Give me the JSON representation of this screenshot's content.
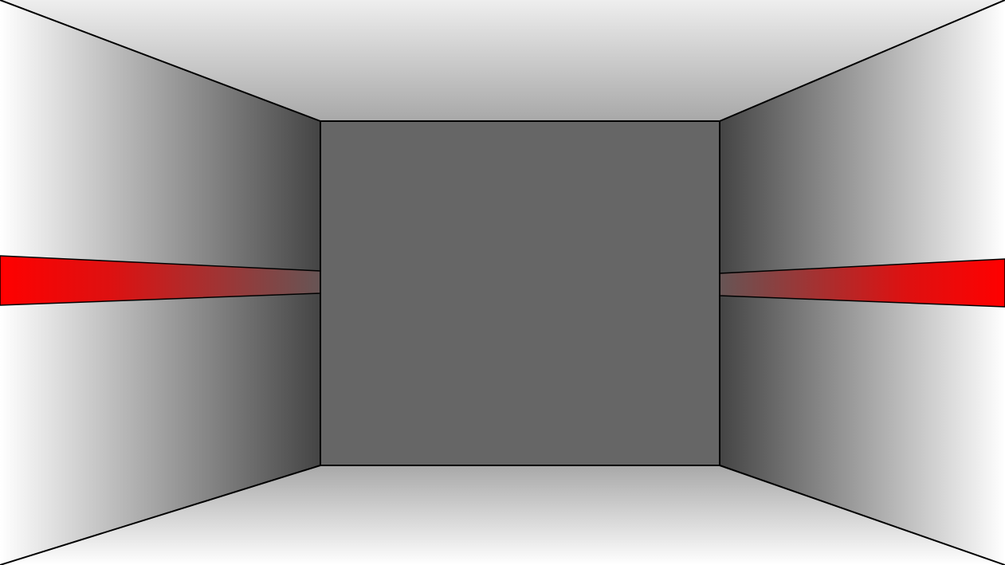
{
  "scene": {
    "type": "first-person-corridor",
    "colors": {
      "wall_far": "#666666",
      "wall_near": "#ffffff",
      "wall_dark": "#444444",
      "stripe_red": "#ff0000",
      "stripe_dark": "#665555",
      "edge": "#000000"
    }
  }
}
